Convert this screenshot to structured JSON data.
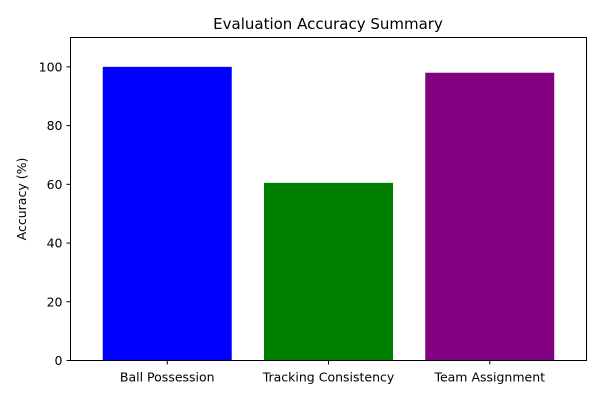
{
  "chart_data": {
    "type": "bar",
    "title": "Evaluation Accuracy Summary",
    "xlabel": "",
    "ylabel": "Accuracy (%)",
    "categories": [
      "Ball Possession",
      "Tracking Consistency",
      "Team Assignment"
    ],
    "values": [
      100,
      60.5,
      98
    ],
    "colors": [
      "#0000ff",
      "#008000",
      "#800080"
    ],
    "ylim": [
      0,
      110
    ],
    "yticks": [
      0,
      20,
      40,
      60,
      80,
      100
    ],
    "grid": false,
    "legend": "none"
  }
}
